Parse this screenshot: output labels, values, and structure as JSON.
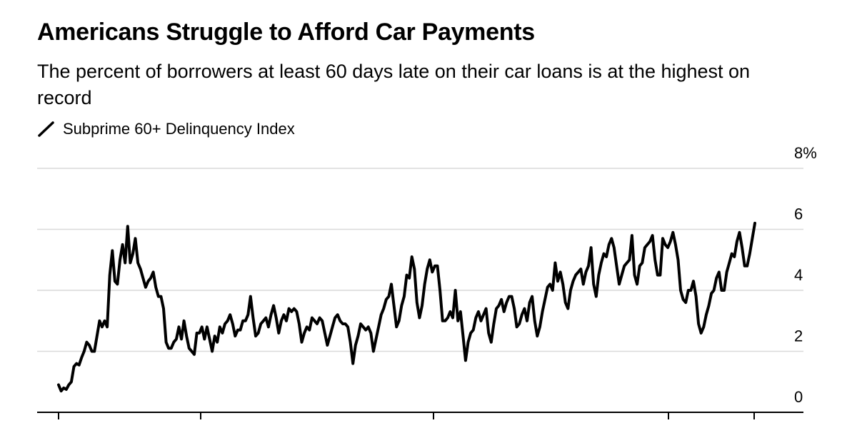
{
  "chart_data": {
    "type": "line",
    "title": "Americans Struggle to Afford Car Payments",
    "subtitle": "The percent of borrowers at least 60 days late on their car loans is at the highest on record",
    "legend": {
      "placement": "top-left",
      "entries": [
        "Subprime 60+ Delinquency Index"
      ]
    },
    "yaxis": {
      "position": "right",
      "ylim": [
        0,
        8
      ],
      "ticks": [
        0,
        2,
        4,
        6,
        8
      ],
      "tick_labels": [
        "0",
        "2",
        "4",
        "6",
        "8%"
      ]
    },
    "grid": true,
    "series": [
      {
        "color": "#000000",
        "values": [
          0.9,
          0.7,
          0.8,
          0.75,
          0.9,
          1.0,
          1.5,
          1.6,
          1.55,
          1.8,
          2.0,
          2.3,
          2.2,
          2.0,
          2.0,
          2.5,
          3.0,
          2.8,
          3.0,
          2.8,
          4.5,
          5.3,
          4.3,
          4.2,
          5.0,
          5.5,
          4.9,
          6.1,
          4.9,
          5.2,
          5.7,
          4.9,
          4.7,
          4.4,
          4.1,
          4.3,
          4.4,
          4.6,
          4.1,
          3.8,
          3.8,
          3.4,
          2.3,
          2.1,
          2.1,
          2.3,
          2.4,
          2.8,
          2.4,
          3.0,
          2.5,
          2.1,
          2.0,
          1.9,
          2.6,
          2.6,
          2.8,
          2.4,
          2.8,
          2.4,
          2.0,
          2.5,
          2.3,
          2.8,
          2.6,
          2.9,
          3.0,
          3.2,
          2.9,
          2.5,
          2.7,
          2.7,
          3.0,
          3.0,
          3.2,
          3.8,
          3.1,
          2.5,
          2.6,
          2.9,
          3.0,
          3.1,
          2.8,
          3.2,
          3.5,
          3.1,
          2.6,
          3.0,
          3.2,
          3.0,
          3.4,
          3.3,
          3.4,
          3.3,
          2.9,
          2.3,
          2.6,
          2.8,
          2.7,
          3.1,
          3.0,
          2.9,
          3.1,
          3.0,
          2.6,
          2.2,
          2.5,
          2.8,
          3.1,
          3.2,
          3.0,
          2.9,
          2.9,
          2.8,
          2.3,
          1.6,
          2.2,
          2.5,
          2.9,
          2.8,
          2.7,
          2.8,
          2.6,
          2.0,
          2.4,
          2.8,
          3.2,
          3.4,
          3.7,
          3.8,
          4.2,
          3.5,
          2.8,
          3.0,
          3.5,
          3.8,
          4.5,
          4.4,
          5.1,
          4.7,
          3.6,
          3.1,
          3.5,
          4.2,
          4.7,
          5.0,
          4.6,
          4.8,
          4.8,
          4.0,
          3.0,
          3.0,
          3.1,
          3.3,
          3.1,
          4.0,
          3.0,
          3.3,
          2.5,
          1.7,
          2.3,
          2.6,
          2.7,
          3.1,
          3.3,
          3.0,
          3.2,
          3.4,
          2.6,
          2.3,
          2.9,
          3.4,
          3.5,
          3.7,
          3.3,
          3.6,
          3.8,
          3.8,
          3.4,
          2.8,
          2.9,
          3.2,
          3.4,
          3.0,
          3.6,
          3.8,
          3.0,
          2.5,
          2.8,
          3.3,
          3.7,
          4.1,
          4.2,
          4.0,
          4.9,
          4.3,
          4.6,
          4.2,
          3.6,
          3.4,
          4.0,
          4.3,
          4.5,
          4.6,
          4.7,
          4.2,
          4.6,
          4.8,
          5.4,
          4.2,
          3.8,
          4.5,
          4.9,
          5.2,
          5.1,
          5.5,
          5.7,
          5.4,
          4.8,
          4.2,
          4.5,
          4.8,
          4.9,
          5.0,
          5.8,
          4.5,
          4.2,
          4.8,
          4.9,
          5.4,
          5.5,
          5.6,
          5.8,
          5.0,
          4.5,
          4.5,
          5.7,
          5.5,
          5.4,
          5.6,
          5.9,
          5.5,
          5.0,
          4.0,
          3.7,
          3.6,
          4.0,
          4.0,
          4.3,
          3.8,
          2.9,
          2.6,
          2.8,
          3.2,
          3.5,
          3.9,
          4.0,
          4.4,
          4.6,
          4.0,
          4.0,
          4.6,
          4.9,
          5.2,
          5.1,
          5.6,
          5.9,
          5.4,
          4.8,
          4.8,
          5.2,
          5.7,
          6.2
        ]
      }
    ]
  }
}
